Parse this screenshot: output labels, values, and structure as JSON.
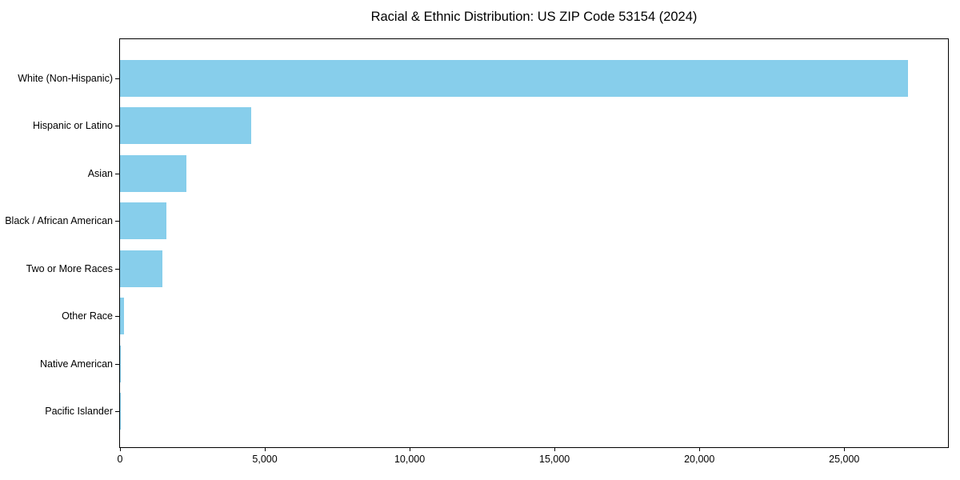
{
  "figure": {
    "background_color": "#ffffff",
    "plot_border_color": "#000000",
    "text_color": "#000000"
  },
  "chart_data": {
    "type": "bar",
    "orientation": "horizontal",
    "title": "Racial & Ethnic Distribution: US ZIP Code 53154 (2024)",
    "categories": [
      "White (Non-Hispanic)",
      "Hispanic or Latino",
      "Asian",
      "Black / African American",
      "Two or More Races",
      "Other Race",
      "Native American",
      "Pacific Islander"
    ],
    "values": [
      27200,
      4520,
      2280,
      1590,
      1470,
      140,
      30,
      8
    ],
    "xlabel": "",
    "ylabel": "",
    "xlim": [
      0,
      28583
    ],
    "x_ticks": [
      0,
      5000,
      10000,
      15000,
      20000,
      25000
    ],
    "x_tick_labels": [
      "0",
      "5,000",
      "10,000",
      "15,000",
      "20,000",
      "25,000"
    ],
    "bar_color": "#87CEEB",
    "grid": false,
    "legend": null
  }
}
